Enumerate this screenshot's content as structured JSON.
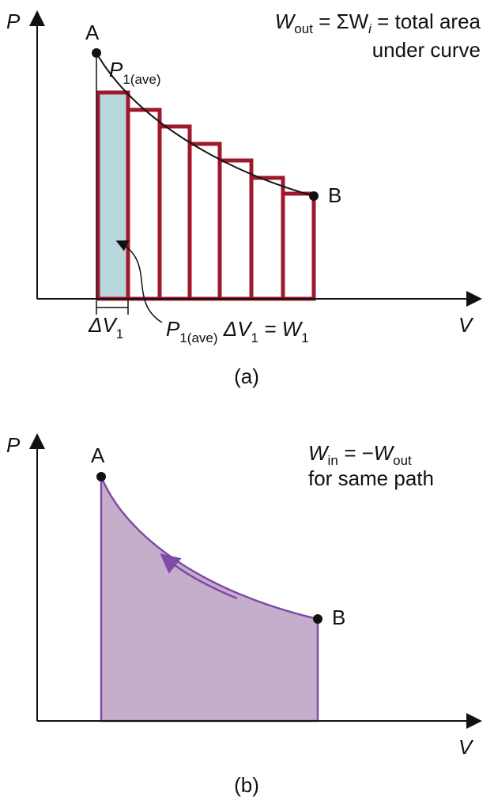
{
  "panel_a": {
    "y_axis": "P",
    "x_axis": "V",
    "point_a": "A",
    "point_b": "B",
    "caption": "(a)",
    "equation": [
      "W",
      "out",
      " = ΣW",
      "i",
      " = total area"
    ],
    "equation_line2": "under curve",
    "p_ave": [
      "P",
      "1(ave)"
    ],
    "delta_v": [
      "ΔV",
      "1"
    ],
    "work": [
      "P",
      "1(ave)",
      " ΔV",
      "1",
      " = W",
      "1"
    ]
  },
  "panel_b": {
    "y_axis": "P",
    "x_axis": "V",
    "point_a": "A",
    "point_b": "B",
    "caption": "(b)",
    "equation": [
      "W",
      "in",
      " = −W",
      "out"
    ],
    "equation_line2": "for same path"
  }
}
